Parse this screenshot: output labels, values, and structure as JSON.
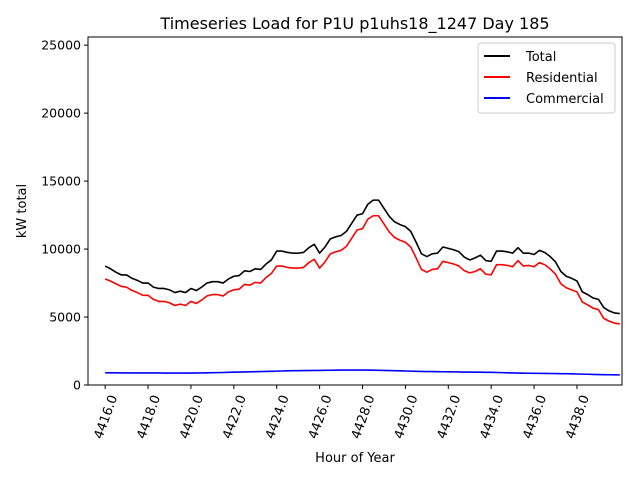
{
  "chart_data": {
    "type": "line",
    "title": "Timeseries Load for P1U p1uhs18_1247  Day 185",
    "xlabel": "Hour of Year",
    "ylabel": "kW total",
    "xlim": [
      4415.2,
      4440.1
    ],
    "ylim": [
      0,
      25600
    ],
    "xticks": [
      4416,
      4418,
      4420,
      4422,
      4424,
      4426,
      4428,
      4430,
      4432,
      4434,
      4436,
      4438
    ],
    "xtick_labels": [
      "4416.0",
      "4418.0",
      "4420.0",
      "4422.0",
      "4424.0",
      "4426.0",
      "4428.0",
      "4430.0",
      "4432.0",
      "4434.0",
      "4436.0",
      "4438.0"
    ],
    "yticks": [
      0,
      5000,
      10000,
      15000,
      20000,
      25000
    ],
    "ytick_labels": [
      "0",
      "5000",
      "10000",
      "15000",
      "20000",
      "25000"
    ],
    "legend_position": "top-right",
    "x_start": 4416,
    "x_step": 0.25,
    "series": [
      {
        "name": "Total",
        "color": "#000000",
        "values": [
          8750,
          8550,
          8300,
          8100,
          8100,
          7850,
          7700,
          7500,
          7500,
          7200,
          7100,
          7100,
          7000,
          6800,
          6900,
          6800,
          7100,
          6950,
          7200,
          7500,
          7600,
          7600,
          7500,
          7800,
          8000,
          8050,
          8400,
          8350,
          8550,
          8500,
          8900,
          9200,
          9850,
          9850,
          9750,
          9700,
          9700,
          9750,
          10100,
          10350,
          9700,
          10150,
          10750,
          10900,
          11000,
          11300,
          11900,
          12500,
          12600,
          13300,
          13600,
          13600,
          13000,
          12400,
          12000,
          11800,
          11650,
          11300,
          10500,
          9650,
          9450,
          9650,
          9700,
          10150,
          10050,
          9950,
          9800,
          9400,
          9200,
          9350,
          9550,
          9150,
          9100,
          9850,
          9850,
          9800,
          9700,
          10100,
          9700,
          9700,
          9600,
          9900,
          9750,
          9450,
          9050,
          8350,
          8000,
          7850,
          7650,
          6850,
          6650,
          6400,
          6300,
          5700,
          5450,
          5300,
          5250
        ]
      },
      {
        "name": "Residential",
        "color": "#ff0000",
        "values": [
          7800,
          7650,
          7450,
          7250,
          7200,
          6950,
          6800,
          6600,
          6600,
          6300,
          6150,
          6150,
          6050,
          5850,
          5950,
          5850,
          6150,
          6000,
          6250,
          6550,
          6650,
          6650,
          6550,
          6850,
          7000,
          7050,
          7400,
          7350,
          7550,
          7500,
          7900,
          8200,
          8750,
          8750,
          8650,
          8600,
          8600,
          8650,
          9000,
          9250,
          8600,
          9050,
          9650,
          9800,
          9900,
          10200,
          10800,
          11400,
          11500,
          12200,
          12450,
          12450,
          11850,
          11250,
          10850,
          10650,
          10500,
          10150,
          9350,
          8500,
          8300,
          8500,
          8550,
          9100,
          9000,
          8900,
          8750,
          8400,
          8250,
          8350,
          8550,
          8150,
          8100,
          8850,
          8850,
          8800,
          8700,
          9150,
          8750,
          8800,
          8700,
          9000,
          8850,
          8550,
          8150,
          7450,
          7150,
          7000,
          6850,
          6100,
          5900,
          5650,
          5550,
          4900,
          4700,
          4550,
          4500
        ]
      },
      {
        "name": "Commercial",
        "color": "#0000ff",
        "values": [
          900,
          895,
          895,
          890,
          890,
          890,
          885,
          885,
          885,
          885,
          885,
          880,
          880,
          880,
          880,
          880,
          880,
          885,
          890,
          900,
          905,
          910,
          920,
          930,
          940,
          950,
          960,
          970,
          980,
          990,
          1000,
          1010,
          1020,
          1030,
          1040,
          1050,
          1055,
          1060,
          1065,
          1070,
          1075,
          1080,
          1085,
          1090,
          1095,
          1100,
          1100,
          1100,
          1100,
          1095,
          1090,
          1080,
          1070,
          1060,
          1050,
          1040,
          1030,
          1020,
          1010,
          1000,
          990,
          985,
          980,
          975,
          970,
          965,
          960,
          955,
          950,
          945,
          940,
          935,
          930,
          920,
          910,
          900,
          890,
          880,
          870,
          865,
          860,
          855,
          850,
          845,
          840,
          835,
          830,
          820,
          810,
          800,
          790,
          780,
          770,
          760,
          755,
          750,
          745
        ]
      }
    ]
  }
}
